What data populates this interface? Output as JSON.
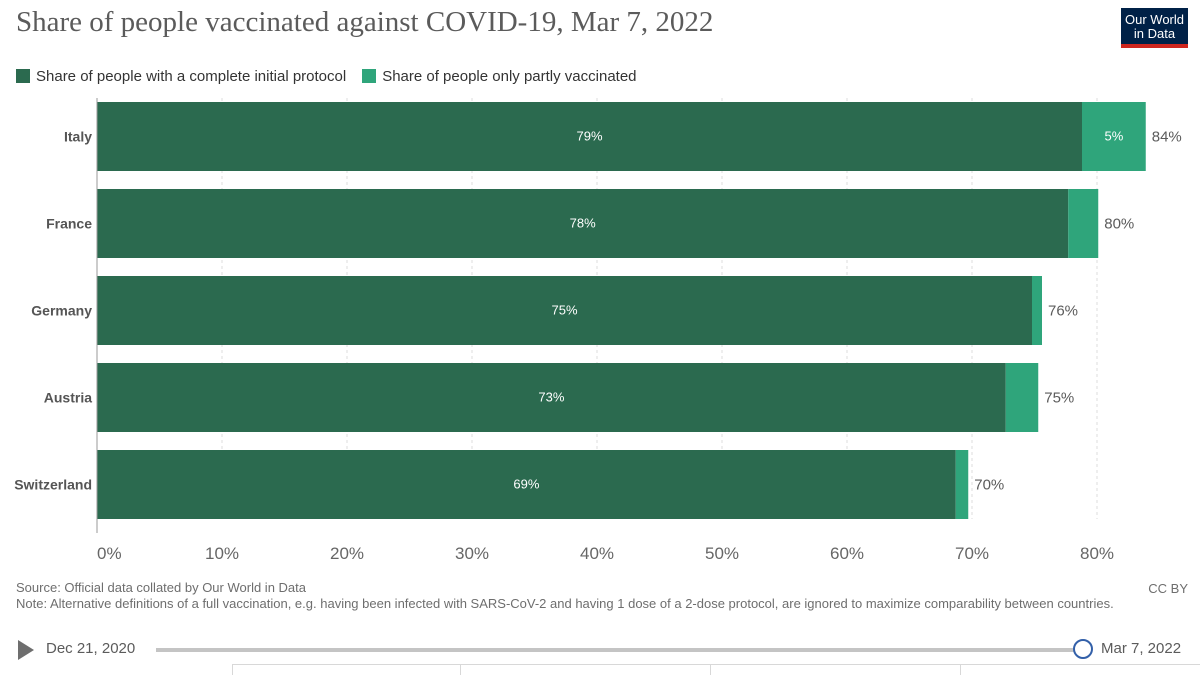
{
  "header": {
    "title": "Share of people vaccinated against COVID-19, Mar 7, 2022",
    "logo_line1": "Our World",
    "logo_line2": "in Data"
  },
  "legend": [
    {
      "label": "Share of people with a complete initial protocol",
      "color": "#2b6a4f"
    },
    {
      "label": "Share of people only partly vaccinated",
      "color": "#2fa57b"
    }
  ],
  "chart_data": {
    "type": "bar",
    "orientation": "horizontal",
    "stacked": true,
    "categories": [
      "Italy",
      "France",
      "Germany",
      "Austria",
      "Switzerland"
    ],
    "series": [
      {
        "name": "Share of people with a complete initial protocol",
        "color": "#2b6a4f",
        "values": [
          78.8,
          77.7,
          74.8,
          72.7,
          68.7
        ],
        "labels": [
          "79%",
          "78%",
          "75%",
          "73%",
          "69%"
        ]
      },
      {
        "name": "Share of people only partly vaccinated",
        "color": "#2fa57b",
        "values": [
          5.1,
          2.4,
          0.8,
          2.6,
          1.0
        ],
        "labels": [
          "5%",
          "",
          "",
          "",
          ""
        ]
      }
    ],
    "totals": [
      "84%",
      "80%",
      "76%",
      "75%",
      "70%"
    ],
    "xlim": [
      0,
      84
    ],
    "xticks": [
      0,
      10,
      20,
      30,
      40,
      50,
      60,
      70,
      80
    ],
    "xtick_labels": [
      "0%",
      "10%",
      "20%",
      "30%",
      "40%",
      "50%",
      "60%",
      "70%",
      "80%"
    ],
    "grid": true,
    "legend_position": "top-left"
  },
  "footer": {
    "source": "Source: Official data collated by Our World in Data",
    "note": "Note: Alternative definitions of a full vaccination, e.g. having been infected with SARS-CoV-2 and having 1 dose of a 2-dose protocol, are ignored to maximize comparability between countries.",
    "license": "CC BY"
  },
  "timeline": {
    "start_date": "Dec 21, 2020",
    "end_date": "Mar 7, 2022",
    "position": 1.0
  }
}
